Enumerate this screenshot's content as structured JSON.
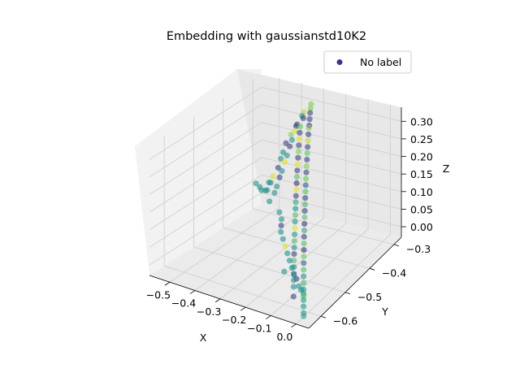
{
  "chart_data": {
    "type": "scatter",
    "projection": "3d",
    "title": "Embedding with gaussianstd10K2",
    "xlabel": "X",
    "ylabel": "Y",
    "zlabel": "Z",
    "xlim": [
      -0.58,
      0.05
    ],
    "ylim": [
      -0.65,
      -0.27
    ],
    "zlim": [
      -0.03,
      0.34
    ],
    "x_ticks": [
      -0.5,
      -0.4,
      -0.3,
      -0.2,
      -0.1,
      0.0
    ],
    "x_tick_labels": [
      "−0.5",
      "−0.4",
      "−0.3",
      "−0.2",
      "−0.1",
      "0.0"
    ],
    "y_ticks": [
      -0.6,
      -0.5,
      -0.4,
      -0.3
    ],
    "y_tick_labels": [
      "−0.6",
      "−0.5",
      "−0.4",
      "−0.3"
    ],
    "z_ticks": [
      0.0,
      0.05,
      0.1,
      0.15,
      0.2,
      0.25,
      0.3
    ],
    "z_tick_labels": [
      "0.00",
      "0.05",
      "0.10",
      "0.15",
      "0.20",
      "0.25",
      "0.30"
    ],
    "grid": true,
    "legend": {
      "position": "top-right",
      "entries": [
        {
          "label": "No label",
          "color": "#3b3584"
        }
      ]
    },
    "colormap": "viridis",
    "series": [
      {
        "name": "No label",
        "points": [
          [
            -0.32,
            -0.3,
            0.31,
            0.8
          ],
          [
            -0.31,
            -0.31,
            0.305,
            0.8
          ],
          [
            -0.3,
            -0.32,
            0.3,
            0.2
          ],
          [
            -0.29,
            -0.33,
            0.29,
            0.2
          ],
          [
            -0.28,
            -0.34,
            0.28,
            0.2
          ],
          [
            -0.27,
            -0.35,
            0.28,
            0.8
          ],
          [
            -0.26,
            -0.36,
            0.27,
            0.2
          ],
          [
            -0.25,
            -0.37,
            0.26,
            0.9
          ],
          [
            -0.24,
            -0.38,
            0.25,
            0.2
          ],
          [
            -0.23,
            -0.39,
            0.24,
            0.75
          ],
          [
            -0.22,
            -0.4,
            0.23,
            0.2
          ],
          [
            -0.21,
            -0.41,
            0.22,
            0.8
          ],
          [
            -0.2,
            -0.42,
            0.21,
            0.2
          ],
          [
            -0.19,
            -0.43,
            0.2,
            0.75
          ],
          [
            -0.18,
            -0.44,
            0.19,
            0.3
          ],
          [
            -0.17,
            -0.45,
            0.18,
            0.7
          ],
          [
            -0.16,
            -0.46,
            0.17,
            0.2
          ],
          [
            -0.15,
            -0.47,
            0.16,
            0.65
          ],
          [
            -0.14,
            -0.48,
            0.15,
            0.2
          ],
          [
            -0.13,
            -0.49,
            0.14,
            0.7
          ],
          [
            -0.12,
            -0.5,
            0.13,
            0.15
          ],
          [
            -0.11,
            -0.51,
            0.12,
            0.6
          ],
          [
            -0.1,
            -0.52,
            0.11,
            0.2
          ],
          [
            -0.09,
            -0.53,
            0.1,
            0.7
          ],
          [
            -0.08,
            -0.54,
            0.09,
            0.15
          ],
          [
            -0.07,
            -0.55,
            0.08,
            0.75
          ],
          [
            -0.06,
            -0.56,
            0.07,
            0.3
          ],
          [
            -0.05,
            -0.57,
            0.06,
            0.7
          ],
          [
            -0.04,
            -0.58,
            0.05,
            0.5
          ],
          [
            -0.03,
            -0.59,
            0.04,
            0.65
          ],
          [
            -0.02,
            -0.6,
            0.03,
            0.5
          ],
          [
            -0.01,
            -0.61,
            0.02,
            0.7
          ],
          [
            -0.34,
            -0.31,
            0.29,
            0.9
          ],
          [
            -0.33,
            -0.32,
            0.28,
            0.2
          ],
          [
            -0.32,
            -0.34,
            0.27,
            0.75
          ],
          [
            -0.31,
            -0.35,
            0.26,
            0.2
          ],
          [
            -0.3,
            -0.36,
            0.25,
            0.95
          ],
          [
            -0.29,
            -0.37,
            0.24,
            0.2
          ],
          [
            -0.28,
            -0.38,
            0.23,
            0.8
          ],
          [
            -0.27,
            -0.39,
            0.22,
            0.2
          ],
          [
            -0.26,
            -0.4,
            0.21,
            0.95
          ],
          [
            -0.25,
            -0.41,
            0.2,
            0.2
          ],
          [
            -0.24,
            -0.42,
            0.19,
            0.7
          ],
          [
            -0.23,
            -0.43,
            0.18,
            0.15
          ],
          [
            -0.22,
            -0.44,
            0.17,
            0.95
          ],
          [
            -0.21,
            -0.45,
            0.16,
            0.2
          ],
          [
            -0.2,
            -0.46,
            0.15,
            0.6
          ],
          [
            -0.19,
            -0.47,
            0.14,
            0.5
          ],
          [
            -0.18,
            -0.48,
            0.13,
            0.7
          ],
          [
            -0.17,
            -0.49,
            0.12,
            0.5
          ],
          [
            -0.16,
            -0.5,
            0.11,
            0.95
          ],
          [
            -0.15,
            -0.51,
            0.1,
            0.5
          ],
          [
            -0.14,
            -0.52,
            0.09,
            0.7
          ],
          [
            -0.13,
            -0.53,
            0.08,
            0.5
          ],
          [
            -0.12,
            -0.54,
            0.07,
            0.2
          ],
          [
            -0.11,
            -0.55,
            0.06,
            0.7
          ],
          [
            -0.1,
            -0.56,
            0.05,
            0.5
          ],
          [
            -0.09,
            -0.57,
            0.04,
            0.2
          ],
          [
            -0.08,
            -0.58,
            0.03,
            0.5
          ],
          [
            -0.07,
            -0.59,
            0.02,
            0.5
          ],
          [
            -0.36,
            -0.3,
            0.27,
            0.5
          ],
          [
            -0.37,
            -0.31,
            0.25,
            0.2
          ],
          [
            -0.38,
            -0.31,
            0.23,
            0.95
          ],
          [
            -0.38,
            -0.32,
            0.21,
            0.5
          ],
          [
            -0.39,
            -0.32,
            0.19,
            0.2
          ],
          [
            -0.39,
            -0.33,
            0.17,
            0.5
          ],
          [
            -0.4,
            -0.33,
            0.15,
            0.95
          ],
          [
            -0.4,
            -0.34,
            0.13,
            0.5
          ],
          [
            -0.41,
            -0.34,
            0.11,
            0.2
          ],
          [
            -0.41,
            -0.35,
            0.09,
            0.5
          ],
          [
            -0.42,
            -0.35,
            0.07,
            0.5
          ],
          [
            -0.43,
            -0.36,
            0.05,
            0.5
          ],
          [
            -0.35,
            -0.33,
            0.26,
            0.2
          ],
          [
            -0.36,
            -0.34,
            0.24,
            0.8
          ],
          [
            -0.37,
            -0.35,
            0.22,
            0.2
          ],
          [
            -0.37,
            -0.36,
            0.2,
            0.5
          ],
          [
            -0.38,
            -0.36,
            0.18,
            0.5
          ],
          [
            -0.38,
            -0.37,
            0.16,
            0.2
          ],
          [
            -0.39,
            -0.38,
            0.14,
            0.95
          ],
          [
            -0.4,
            -0.38,
            0.12,
            0.5
          ],
          [
            -0.54,
            -0.32,
            0.06,
            0.5
          ],
          [
            -0.51,
            -0.33,
            0.06,
            0.5
          ],
          [
            -0.49,
            -0.34,
            0.06,
            0.5
          ],
          [
            -0.46,
            -0.35,
            0.07,
            0.5
          ],
          [
            -0.44,
            -0.36,
            0.08,
            0.5
          ],
          [
            -0.47,
            -0.33,
            0.08,
            0.5
          ],
          [
            -0.28,
            -0.45,
            0.1,
            0.5
          ],
          [
            -0.26,
            -0.46,
            0.09,
            0.5
          ],
          [
            -0.25,
            -0.47,
            0.08,
            0.2
          ],
          [
            -0.24,
            -0.48,
            0.07,
            0.5
          ],
          [
            -0.22,
            -0.49,
            0.06,
            0.5
          ],
          [
            -0.2,
            -0.5,
            0.05,
            0.95
          ],
          [
            -0.18,
            -0.51,
            0.04,
            0.5
          ],
          [
            -0.16,
            -0.52,
            0.03,
            0.5
          ],
          [
            -0.14,
            -0.53,
            0.02,
            0.5
          ],
          [
            -0.12,
            -0.54,
            0.01,
            0.5
          ],
          [
            -0.1,
            -0.55,
            0.01,
            0.2
          ],
          [
            -0.08,
            -0.56,
            0.0,
            0.5
          ],
          [
            -0.06,
            -0.57,
            0.0,
            0.5
          ],
          [
            -0.04,
            -0.58,
            0.0,
            0.5
          ],
          [
            -0.02,
            -0.6,
            0.0,
            0.55
          ],
          [
            0.0,
            -0.62,
            0.0,
            0.5
          ],
          [
            0.01,
            -0.63,
            -0.01,
            0.5
          ],
          [
            0.02,
            -0.64,
            -0.01,
            0.6
          ],
          [
            -0.05,
            -0.61,
            0.01,
            0.2
          ],
          [
            -0.15,
            -0.55,
            0.02,
            0.5
          ]
        ]
      }
    ]
  }
}
